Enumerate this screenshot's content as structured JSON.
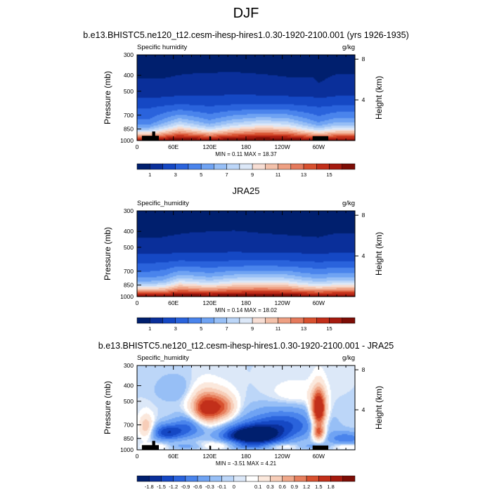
{
  "page": {
    "title": "DJF"
  },
  "colors": {
    "background": "#ffffff",
    "abs_scale": [
      "#001f6e",
      "#0a2f9a",
      "#1548c4",
      "#2a63dc",
      "#4a84ec",
      "#6fa3f3",
      "#97bff6",
      "#bcd6f8",
      "#dce8f8",
      "#f7ded4",
      "#f3c1aa",
      "#eea083",
      "#e57a5c",
      "#d8512f",
      "#c22f1a",
      "#a51a0f",
      "#7d0d06"
    ],
    "diff_scale": [
      "#001f6e",
      "#0a2f9a",
      "#1548c4",
      "#2a63dc",
      "#4a84ec",
      "#6fa3f3",
      "#97bff6",
      "#bcd6f8",
      "#dce8f8",
      "#ffffff",
      "#fbe8dc",
      "#f7cdb8",
      "#f0a88a",
      "#e77f5d",
      "#d8512f",
      "#c22f1a",
      "#a51a0f",
      "#7d0d06"
    ],
    "terrain": "#000000"
  },
  "chart_data": [
    {
      "type": "heatmap",
      "title": "b.e13.BHISTC5.ne120_t12.cesm-ihesp-hires1.0.30-1920-2100.001 (yrs 1926-1935)",
      "left_label": "Specific humidity",
      "right_label": "g/kg",
      "ylabel": "Pressure (mb)",
      "y2label": "Height (km)",
      "x_ticks": [
        "60E",
        "120E",
        "180",
        "120W",
        "60W"
      ],
      "x_tick_lons": [
        60,
        120,
        180,
        240,
        300
      ],
      "xlim": [
        0,
        360
      ],
      "y_ticks": [
        "300",
        "400",
        "500",
        "700",
        "850",
        "1000"
      ],
      "y_tick_values": [
        300,
        400,
        500,
        700,
        850,
        1000
      ],
      "ylim": [
        300,
        1000
      ],
      "y2_ticks": [
        "8",
        "4"
      ],
      "y2_tick_values": [
        8,
        4
      ],
      "stats": "MIN =   0.11  MAX =  18.37",
      "min": 0.11,
      "max": 18.37,
      "colorbar_levels": [
        1,
        2,
        3,
        4,
        5,
        6,
        7,
        8,
        9,
        10,
        11,
        12,
        13,
        14,
        15,
        16
      ],
      "colorbar_labels": [
        "1",
        "3",
        "5",
        "7",
        "9",
        "11",
        "13",
        "15"
      ],
      "dry_lons": [
        [
          20,
          0.45
        ],
        [
          45,
          0.28
        ],
        [
          70,
          0.1
        ],
        [
          120,
          0.32
        ],
        [
          160,
          0.15
        ],
        [
          205,
          0.05
        ],
        [
          248,
          0.1
        ],
        [
          275,
          0.25
        ],
        [
          300,
          0.38
        ],
        [
          330,
          0.25
        ]
      ],
      "wet_lons": [
        [
          40,
          0.25
        ],
        [
          80,
          0.4
        ],
        [
          120,
          0.45
        ],
        [
          160,
          0.48
        ],
        [
          205,
          0.4
        ],
        [
          250,
          0.3
        ],
        [
          290,
          0.3
        ],
        [
          300,
          0.15
        ],
        [
          330,
          0.4
        ]
      ],
      "terrain": [
        [
          8,
          36,
          935
        ],
        [
          25,
          30,
          880
        ],
        [
          120,
          122,
          945
        ],
        [
          290,
          316,
          940
        ]
      ]
    },
    {
      "type": "heatmap",
      "title": "JRA25",
      "left_label": "Specific_humidity",
      "right_label": "g/kg",
      "ylabel": "Pressure (mb)",
      "y2label": "Height (km)",
      "x_ticks": [
        "60E",
        "120E",
        "180",
        "120W",
        "60W"
      ],
      "x_tick_lons": [
        60,
        120,
        180,
        240,
        300
      ],
      "xlim": [
        0,
        360
      ],
      "y_ticks": [
        "300",
        "400",
        "500",
        "700",
        "850",
        "1000"
      ],
      "y_tick_values": [
        300,
        400,
        500,
        700,
        850,
        1000
      ],
      "ylim": [
        300,
        1000
      ],
      "y2_ticks": [
        "8",
        "4"
      ],
      "y2_tick_values": [
        8,
        4
      ],
      "stats": "MIN =   0.14  MAX =  18.02",
      "min": 0.14,
      "max": 18.02,
      "colorbar_levels": [
        1,
        2,
        3,
        4,
        5,
        6,
        7,
        8,
        9,
        10,
        11,
        12,
        13,
        14,
        15,
        16
      ],
      "colorbar_labels": [
        "1",
        "3",
        "5",
        "7",
        "9",
        "11",
        "13",
        "15"
      ],
      "dry_lons": [
        [
          20,
          0.35
        ],
        [
          45,
          0.3
        ],
        [
          70,
          0.1
        ],
        [
          120,
          0.2
        ],
        [
          160,
          0.1
        ],
        [
          205,
          0.08
        ],
        [
          248,
          0.1
        ],
        [
          275,
          0.2
        ],
        [
          300,
          0.25
        ],
        [
          330,
          0.2
        ]
      ],
      "wet_lons": [
        [
          40,
          0.2
        ],
        [
          80,
          0.3
        ],
        [
          120,
          0.35
        ],
        [
          160,
          0.38
        ],
        [
          205,
          0.3
        ],
        [
          250,
          0.25
        ],
        [
          300,
          0.2
        ],
        [
          330,
          0.3
        ]
      ],
      "terrain": []
    },
    {
      "type": "heatmap",
      "title": "b.e13.BHISTC5.ne120_t12.cesm-ihesp-hires1.0.30-1920-2100.001 - JRA25",
      "left_label": "Specific_humidity",
      "right_label": "g/kg",
      "ylabel": "Pressure (mb)",
      "y2label": "Height (km)",
      "x_ticks": [
        "60E",
        "120E",
        "180",
        "120W",
        "60W"
      ],
      "x_tick_lons": [
        60,
        120,
        180,
        240,
        300
      ],
      "xlim": [
        0,
        360
      ],
      "y_ticks": [
        "300",
        "400",
        "500",
        "700",
        "850",
        "1000"
      ],
      "y_tick_values": [
        300,
        400,
        500,
        700,
        850,
        1000
      ],
      "ylim": [
        300,
        1000
      ],
      "y2_ticks": [
        "8",
        "4"
      ],
      "y2_tick_values": [
        8,
        4
      ],
      "stats": "MIN =  -3.51  MAX =   4.21",
      "min": -3.51,
      "max": 4.21,
      "colorbar_levels": [
        -1.8,
        -1.5,
        -1.2,
        -0.9,
        -0.6,
        -0.3,
        -0.1,
        0,
        0.1,
        0.3,
        0.6,
        0.9,
        1.2,
        1.5,
        1.8
      ],
      "colorbar_labels": [
        "-1.8",
        "-1.5",
        "-1.2",
        "-0.9",
        "-0.6",
        "-0.3",
        "-0.1",
        "0",
        "0.1",
        "0.3",
        "0.6",
        "0.9",
        "1.2",
        "1.5",
        "1.8"
      ],
      "anomalies": [
        [
          115,
          550,
          25,
          120,
          2.2
        ],
        [
          145,
          540,
          20,
          100,
          1.0
        ],
        [
          300,
          560,
          12,
          140,
          2.8
        ],
        [
          300,
          780,
          10,
          90,
          1.8
        ],
        [
          190,
          820,
          45,
          110,
          -2.6
        ],
        [
          240,
          700,
          60,
          150,
          -1.2
        ],
        [
          50,
          780,
          25,
          90,
          -1.4
        ],
        [
          85,
          720,
          25,
          120,
          -0.9
        ],
        [
          15,
          720,
          12,
          120,
          0.9
        ],
        [
          345,
          850,
          30,
          80,
          -0.8
        ],
        [
          150,
          900,
          40,
          40,
          0.3
        ],
        [
          260,
          450,
          40,
          80,
          0.3
        ],
        [
          60,
          420,
          30,
          80,
          -0.3
        ]
      ],
      "terrain": [
        [
          8,
          36,
          935
        ],
        [
          25,
          30,
          880
        ],
        [
          120,
          122,
          945
        ],
        [
          290,
          316,
          940
        ]
      ]
    }
  ]
}
